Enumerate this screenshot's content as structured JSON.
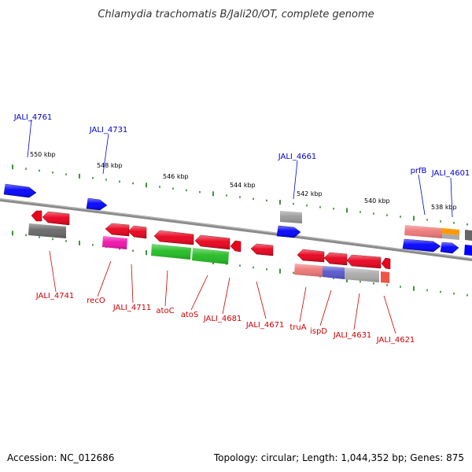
{
  "title": "Chlamydia trachomatis B/Jali20/OT, complete genome",
  "accession": "Accession: NC_012686",
  "topology": "Topology: circular; Length: 1,044,352 bp; Genes: 875",
  "kbp_labels": [
    "550 kbp",
    "548 kbp",
    "546 kbp",
    "544 kbp",
    "542 kbp",
    "540 kbp",
    "538 kbp"
  ],
  "top_gene_labels": [
    "JALI_4761",
    "JALI_4731",
    "JALI_4661",
    "prfB",
    "JALI_4601"
  ],
  "bottom_gene_labels": [
    "JALI_4741",
    "recO",
    "JALI_4711",
    "atoC",
    "atoS",
    "JALI_4681",
    "JALI_4671",
    "truA",
    "ispD",
    "JALI_4631",
    "JALI_4621"
  ],
  "colors": {
    "forward_strand_label": "#0000cc",
    "reverse_strand_label": "#cc0000",
    "cds_red": "#e8001c",
    "cds_blue": "#0000ff",
    "cds_gray": "#666666",
    "cds_green": "#22bb22",
    "cds_magenta": "#ee11aa",
    "tick_green": "#117711",
    "backbone": "#888888"
  }
}
